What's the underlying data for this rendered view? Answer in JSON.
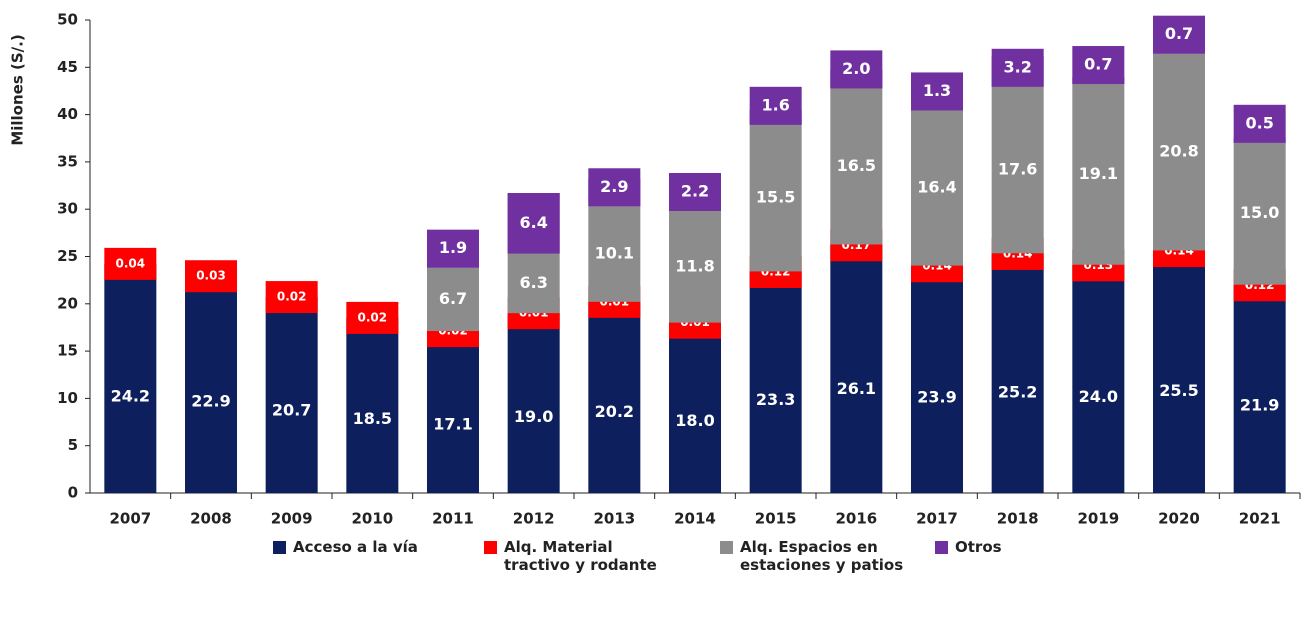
{
  "chart_data": {
    "type": "stacked_bar",
    "y_label": "Millones (S/.)",
    "categories": [
      "2007",
      "2008",
      "2009",
      "2010",
      "2011",
      "2012",
      "2013",
      "2014",
      "2015",
      "2016",
      "2017",
      "2018",
      "2019",
      "2020",
      "2021"
    ],
    "series": [
      {
        "name": "Acceso a la vía",
        "color": "#0d1f5c",
        "values": [
          24.2,
          22.9,
          20.7,
          18.5,
          17.1,
          19.0,
          20.2,
          18.0,
          23.3,
          26.1,
          23.9,
          25.2,
          24.0,
          25.5,
          21.9
        ],
        "value_labels": [
          "24.2",
          "22.9",
          "20.7",
          "18.5",
          "17.1",
          "19.0",
          "20.2",
          "18.0",
          "23.3",
          "26.1",
          "23.9",
          "25.2",
          "24.0",
          "25.5",
          "21.9"
        ]
      },
      {
        "name": "Alq. Material tractivo y rodante",
        "color": "#ff0000",
        "values": [
          0.04,
          0.03,
          0.02,
          0.02,
          0.02,
          0.01,
          0.01,
          0.01,
          0.12,
          0.17,
          0.14,
          0.14,
          0.13,
          0.14,
          0.12
        ]
      },
      {
        "name": "Alq. Espacios en estaciones y patios",
        "color": "#8c8c8c",
        "values": [
          null,
          null,
          null,
          null,
          6.7,
          6.3,
          10.1,
          11.8,
          15.5,
          16.5,
          16.4,
          17.6,
          19.1,
          20.8,
          15.0
        ],
        "value_labels": [
          null,
          null,
          null,
          null,
          "6.7",
          "6.3",
          "10.1",
          "11.8",
          "15.5",
          "16.5",
          "16.4",
          "17.6",
          "19.1",
          "20.8",
          "15.0"
        ]
      },
      {
        "name": "Otros",
        "color": "#7030a0",
        "values": [
          null,
          null,
          null,
          null,
          1.9,
          6.4,
          2.9,
          2.2,
          1.6,
          2.0,
          1.3,
          3.2,
          0.7,
          0.7,
          0.5
        ],
        "value_labels": [
          null,
          null,
          null,
          null,
          "1.9",
          "6.4",
          "2.9",
          "2.2",
          "1.6",
          "2.0",
          "1.3",
          "3.2",
          "0.7",
          "0.7",
          "0.5"
        ]
      }
    ],
    "ylim": [
      0,
      50
    ],
    "yticks": [
      0,
      5,
      10,
      15,
      20,
      25,
      30,
      35,
      40,
      45,
      50
    ]
  }
}
